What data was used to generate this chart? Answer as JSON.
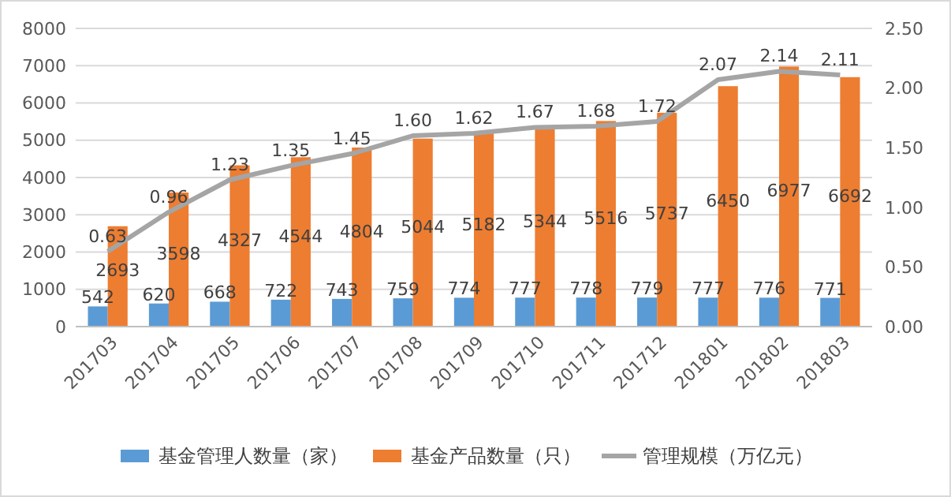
{
  "chart_data": {
    "type": "bar",
    "categories": [
      "201703",
      "201704",
      "201705",
      "201706",
      "201707",
      "201708",
      "201709",
      "201710",
      "201711",
      "201712",
      "201801",
      "201802",
      "201803"
    ],
    "series": [
      {
        "name": "基金管理人数量（家）",
        "color": "#5b9bd5",
        "values": [
          542,
          620,
          668,
          722,
          743,
          759,
          774,
          777,
          778,
          779,
          777,
          776,
          771
        ]
      },
      {
        "name": "基金产品数量（只）",
        "color": "#ed7d31",
        "values": [
          2693,
          3598,
          4327,
          4544,
          4804,
          5044,
          5182,
          5344,
          5516,
          5737,
          6450,
          6977,
          6692
        ]
      },
      {
        "name": "管理规模（万亿元）",
        "color": "#a5a5a5",
        "type": "line",
        "axis": "y2",
        "values": [
          0.63,
          0.96,
          1.23,
          1.35,
          1.45,
          1.6,
          1.62,
          1.67,
          1.68,
          1.72,
          2.07,
          2.14,
          2.11
        ],
        "value_labels": [
          "0.63",
          "0.96",
          "1.23",
          "1.35",
          "1.45",
          "1.60",
          "1.62",
          "1.67",
          "1.68",
          "1.72",
          "2.07",
          "2.14",
          "2.11"
        ]
      }
    ],
    "ylim": [
      0,
      8000
    ],
    "yticks": [
      0,
      1000,
      2000,
      3000,
      4000,
      5000,
      6000,
      7000,
      8000
    ],
    "y2lim": [
      0,
      2.5
    ],
    "y2ticks": [
      {
        "value": 0,
        "label": "0.00"
      },
      {
        "value": 0.5,
        "label": "0.50"
      },
      {
        "value": 1,
        "label": "1.00"
      },
      {
        "value": 1.5,
        "label": "1.50"
      },
      {
        "value": 2,
        "label": "2.00"
      },
      {
        "value": 2.5,
        "label": "2.50"
      }
    ],
    "grid": "y",
    "legend": "bottom",
    "data_labels": true,
    "marker": "none",
    "line_style": "solid"
  }
}
